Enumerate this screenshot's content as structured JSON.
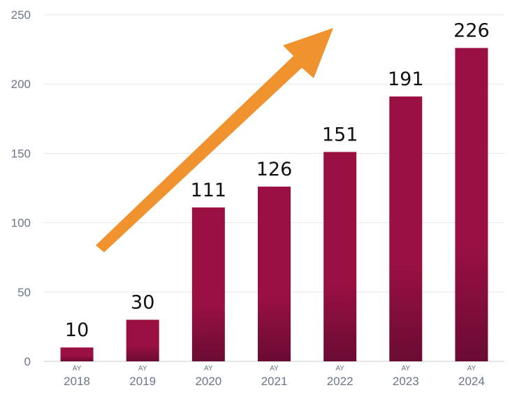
{
  "chart_data": {
    "type": "bar",
    "categories": [
      "2018",
      "2019",
      "2020",
      "2021",
      "2022",
      "2023",
      "2024"
    ],
    "category_prefix": "AY",
    "values": [
      10,
      30,
      111,
      126,
      151,
      191,
      226
    ],
    "ylim": [
      0,
      250
    ],
    "yticks": [
      0,
      50,
      100,
      150,
      200,
      250
    ],
    "grid": true,
    "legend": "none",
    "bar_color": "#9b1043",
    "bar_color_dark": "#6a0b33",
    "arrow_color": "#f0922e",
    "annotation": "upward-trend-arrow"
  }
}
